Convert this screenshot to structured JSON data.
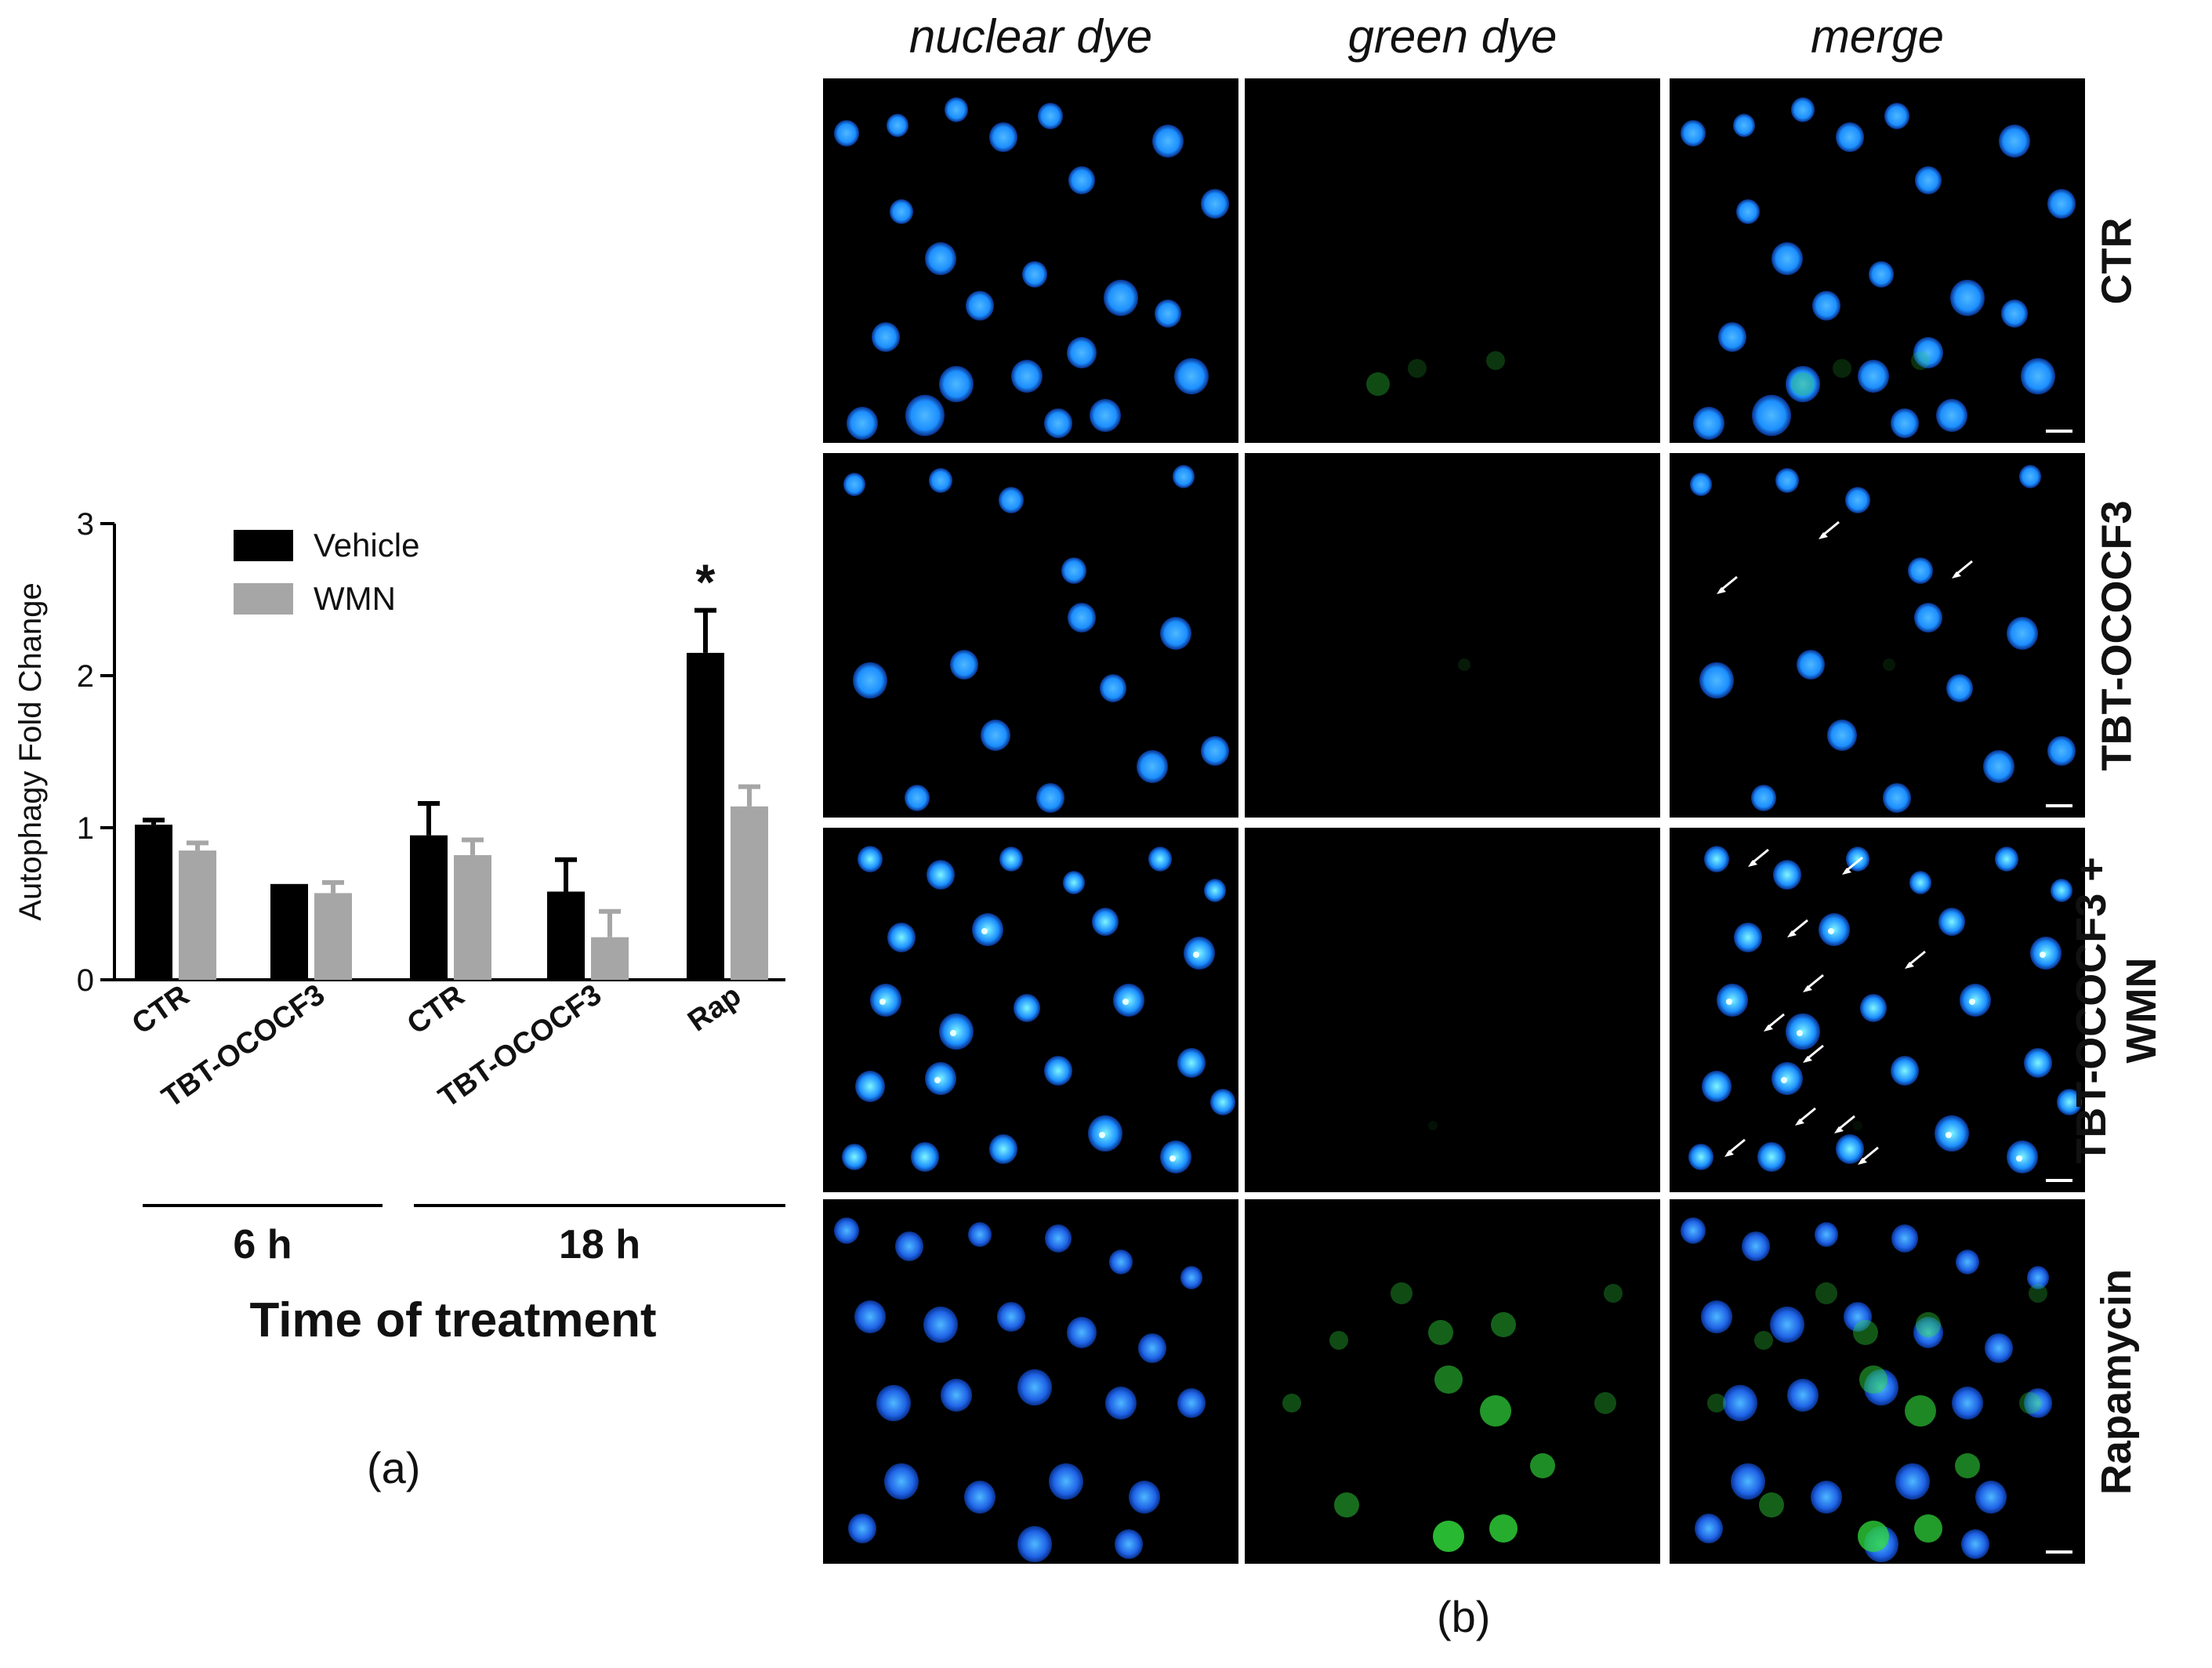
{
  "figure": {
    "panel_a_label": "(a)",
    "panel_b_label": "(b)"
  },
  "chart_data": {
    "type": "bar",
    "ylabel": "Autophagy Fold Change",
    "xlabel": "Time of treatment",
    "ylim": [
      0,
      3
    ],
    "yticks": [
      "0",
      "1",
      "2",
      "3"
    ],
    "categories": [
      "CTR",
      "TBT-OCOCF3",
      "CTR",
      "TBT-OCOCF3",
      "Rap"
    ],
    "groups": [
      {
        "label": "6 h",
        "categories": [
          0,
          1
        ]
      },
      {
        "label": "18 h",
        "categories": [
          2,
          3,
          4
        ]
      }
    ],
    "series": [
      {
        "name": "Vehicle",
        "color": "#000000",
        "values": [
          1.02,
          0.63,
          0.95,
          0.58,
          2.15
        ],
        "errors": [
          0.03,
          0.0,
          0.21,
          0.21,
          0.28
        ]
      },
      {
        "name": "WMN",
        "color": "#a6a6a6",
        "values": [
          0.85,
          0.57,
          0.82,
          0.28,
          1.14
        ],
        "errors": [
          0.05,
          0.07,
          0.1,
          0.17,
          0.13
        ]
      }
    ],
    "annotations": [
      {
        "text": "*",
        "category": 4,
        "series": "Vehicle"
      }
    ],
    "legend_position": "top-left"
  },
  "micrographs": {
    "columns": [
      "nuclear dye",
      "green dye",
      "merge"
    ],
    "rows": [
      "CTR",
      "TBT-OCOCF3",
      "TBT-OCOCF3 +\nWMN",
      "Rapamycin"
    ]
  }
}
